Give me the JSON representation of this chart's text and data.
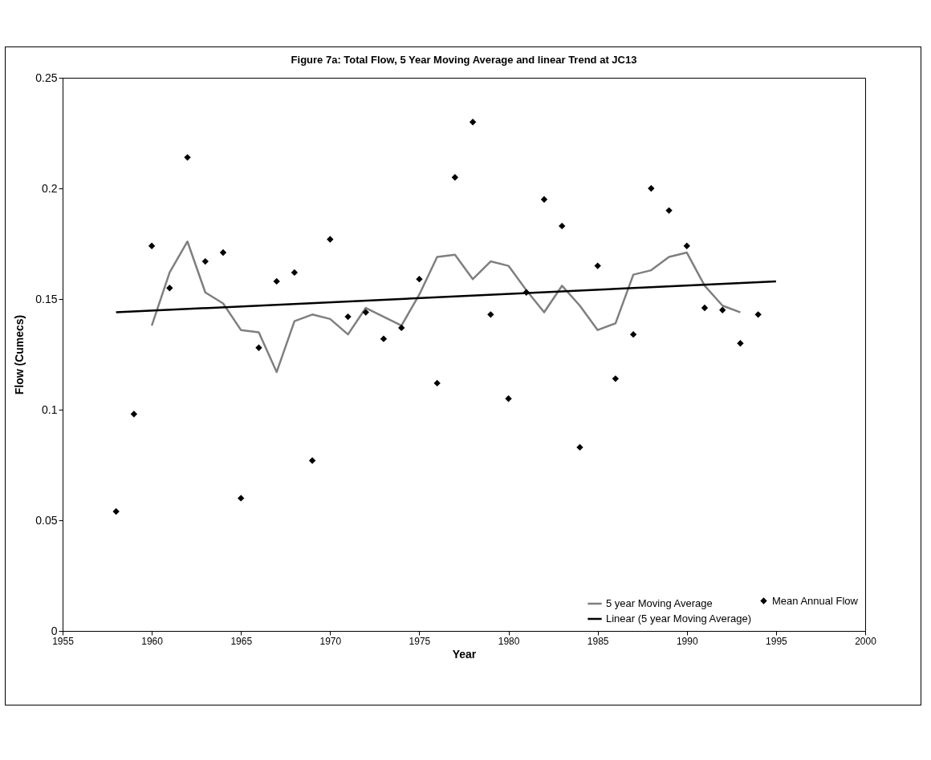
{
  "chart_data": {
    "type": "scatter",
    "title": "Figure 7a: Total Flow, 5 Year Moving Average and linear Trend at JC13",
    "xlabel": "Year",
    "ylabel": "Flow (Cumecs)",
    "xlim": [
      1955,
      2000
    ],
    "xticks": [
      1955,
      1960,
      1965,
      1970,
      1975,
      1980,
      1985,
      1990,
      1995,
      2000
    ],
    "ylim": [
      0,
      0.25
    ],
    "yticks": [
      0,
      0.05,
      0.1,
      0.15,
      0.2,
      0.25
    ],
    "grid": false,
    "legend": "bottom right",
    "line_style": "solid",
    "series": [
      {
        "name": "Mean Annual Flow",
        "marker": "diamond",
        "color": "#000000",
        "x": [
          1958,
          1959,
          1960,
          1961,
          1962,
          1963,
          1964,
          1965,
          1966,
          1967,
          1968,
          1969,
          1970,
          1971,
          1972,
          1973,
          1974,
          1975,
          1976,
          1977,
          1978,
          1979,
          1980,
          1981,
          1982,
          1983,
          1984,
          1985,
          1986,
          1987,
          1988,
          1989,
          1990,
          1991,
          1992,
          1993,
          1994
        ],
        "values": [
          0.054,
          0.098,
          0.174,
          0.155,
          0.214,
          0.167,
          0.171,
          0.06,
          0.128,
          0.158,
          0.162,
          0.077,
          0.177,
          0.142,
          0.144,
          0.132,
          0.137,
          0.159,
          0.112,
          0.205,
          0.23,
          0.143,
          0.105,
          0.153,
          0.195,
          0.183,
          0.083,
          0.165,
          0.114,
          0.134,
          0.2,
          0.19,
          0.174,
          0.146,
          0.145,
          0.13,
          0.143
        ]
      },
      {
        "name": "5 year Moving Average",
        "type": "line",
        "marker": "none",
        "color": "#7f7f7f",
        "x": [
          1960,
          1961,
          1962,
          1963,
          1964,
          1965,
          1966,
          1967,
          1968,
          1969,
          1970,
          1971,
          1972,
          1973,
          1974,
          1975,
          1976,
          1977,
          1978,
          1979,
          1980,
          1981,
          1982,
          1983,
          1984,
          1985,
          1986,
          1987,
          1988,
          1989,
          1990,
          1991,
          1992,
          1993
        ],
        "values": [
          0.138,
          0.162,
          0.176,
          0.153,
          0.148,
          0.136,
          0.135,
          0.117,
          0.14,
          0.143,
          0.141,
          0.134,
          0.146,
          0.142,
          0.138,
          0.152,
          0.169,
          0.17,
          0.159,
          0.167,
          0.165,
          0.154,
          0.144,
          0.156,
          0.147,
          0.136,
          0.139,
          0.161,
          0.163,
          0.169,
          0.171,
          0.156,
          0.147,
          0.144
        ]
      },
      {
        "name": "Linear (5 year Moving Average)",
        "type": "line",
        "marker": "none",
        "color": "#000000",
        "x": [
          1958,
          1995
        ],
        "values": [
          0.144,
          0.158
        ]
      }
    ]
  }
}
